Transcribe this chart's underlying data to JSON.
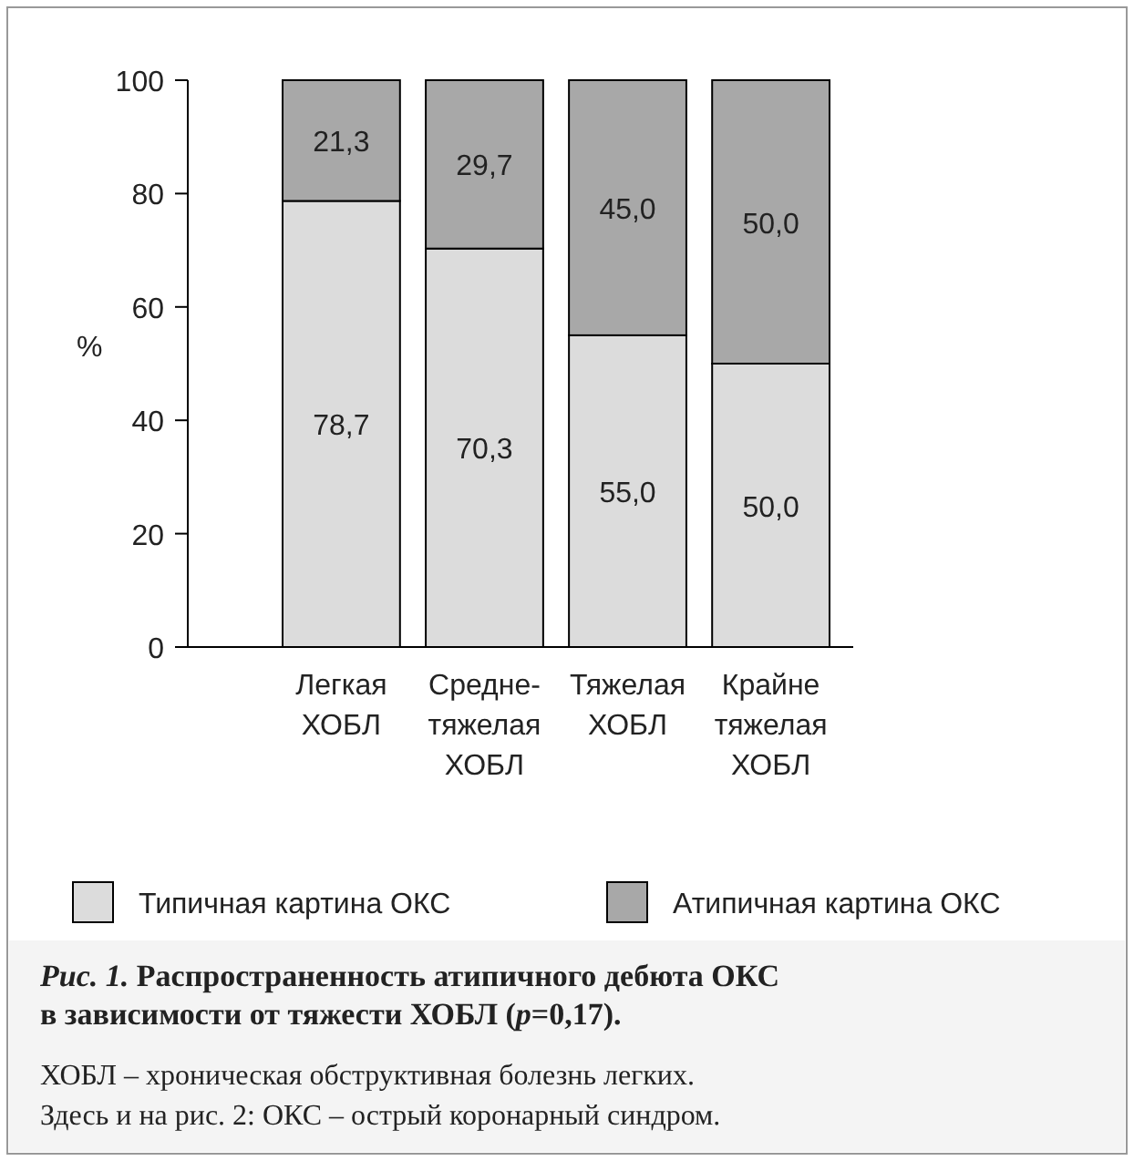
{
  "chart_data": {
    "type": "bar",
    "stacked": true,
    "title": "Рис. 1. Распространенность атипичного дебюта ОКС в зависимости от тяжести ХОБЛ (p=0,17).",
    "ylabel": "%",
    "categories": [
      "Легкая\nХОБЛ",
      "Средне-\nтяжелая\nХОБЛ",
      "Тяжелая\nХОБЛ",
      "Крайне\nтяжелая\nХОБЛ"
    ],
    "series": [
      {
        "name": "Типичная картина ОКС",
        "color": "#dcdcdc",
        "values": [
          78.7,
          70.3,
          55.0,
          50.0
        ],
        "value_labels": [
          "78,7",
          "70,3",
          "55,0",
          "50,0"
        ]
      },
      {
        "name": "Атипичная картина ОКС",
        "color": "#a8a8a8",
        "values": [
          21.3,
          29.7,
          45.0,
          50.0
        ],
        "value_labels": [
          "21,3",
          "29,7",
          "45,0",
          "50,0"
        ]
      }
    ],
    "ylim": [
      0,
      100
    ],
    "yticks": [
      0,
      20,
      40,
      60,
      80,
      100
    ],
    "grid": false,
    "legend": "bottom",
    "annotations": [
      "ХОБЛ – хроническая обструктивная болезнь легких.",
      "Здесь и на рис. 2: ОКС – острый коронарный синдром."
    ]
  }
}
